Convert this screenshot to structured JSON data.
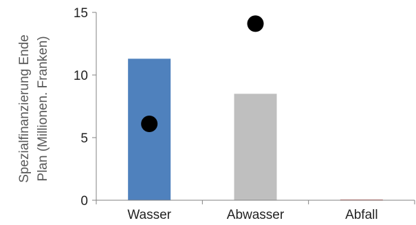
{
  "chart_data": {
    "type": "bar",
    "title": "",
    "xlabel": "",
    "ylabel": "Spezialfinanzierung Ende Plan (Millionen. Franken)",
    "ylabel_lines": [
      "Spezialfinanzierung Ende",
      "Plan (Millionen. Franken)"
    ],
    "categories": [
      "Wasser",
      "Abwasser",
      "Abfall"
    ],
    "ylim": [
      0,
      15
    ],
    "yticks": [
      0,
      5,
      10,
      15
    ],
    "grid": false,
    "series": [
      {
        "type": "bar",
        "values": [
          11.3,
          8.5,
          0.05
        ],
        "colors": [
          "#4f81bd",
          "#bfbfbf",
          "#c0504d"
        ]
      },
      {
        "type": "scatter",
        "values": [
          6.1,
          14.1,
          null
        ],
        "color": "#000000"
      }
    ]
  }
}
